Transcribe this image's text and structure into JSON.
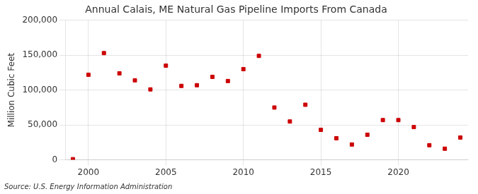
{
  "chart_data": {
    "type": "scatter",
    "title": "Annual Calais, ME Natural Gas Pipeline Imports From Canada",
    "ylabel": "Million Cubic Feet",
    "source": "Source: U.S. Energy Information Administration",
    "x": [
      1999,
      2000,
      2001,
      2002,
      2003,
      2004,
      2005,
      2006,
      2007,
      2008,
      2009,
      2010,
      2011,
      2012,
      2013,
      2014,
      2015,
      2016,
      2017,
      2018,
      2019,
      2020,
      2021,
      2022,
      2023,
      2024
    ],
    "values": [
      1000,
      122000,
      153000,
      124000,
      114000,
      101000,
      135000,
      106000,
      107000,
      119000,
      113000,
      130000,
      149000,
      75000,
      55000,
      79000,
      43000,
      31000,
      22000,
      36000,
      57000,
      57000,
      47000,
      21000,
      16000,
      32000
    ],
    "color": "#cc0000",
    "marker": "square",
    "xlim": [
      1998.5,
      2024.5
    ],
    "xticks": [
      2000,
      2005,
      2010,
      2015,
      2020
    ],
    "ylim": [
      0,
      200000
    ],
    "yticks": [
      0,
      {
        "value": 50000,
        "label": "50,000"
      },
      {
        "value": 100000,
        "label": "100,000"
      },
      {
        "value": 150000,
        "label": "150,000"
      },
      {
        "value": 200000,
        "label": "200,000"
      }
    ],
    "grid": true
  }
}
